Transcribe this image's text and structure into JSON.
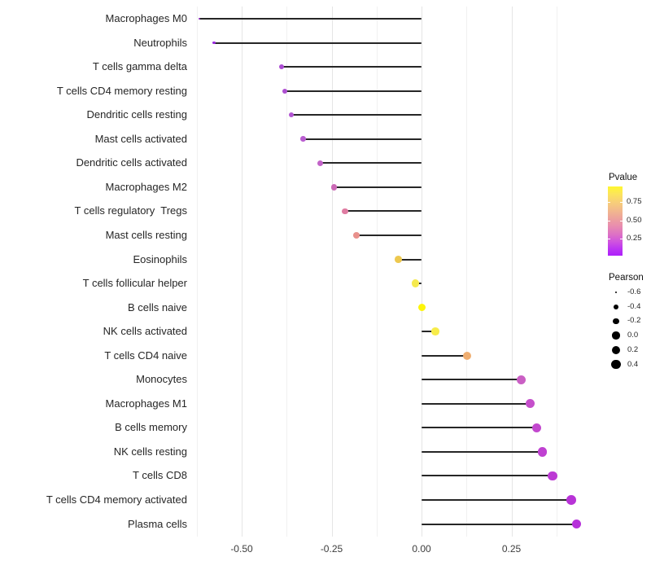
{
  "chart_data": {
    "type": "scatter",
    "subtype": "lollipop",
    "title": "",
    "xlabel": "",
    "ylabel": "",
    "x_axis": {
      "tick_labels": [
        "-0.50",
        "-0.25",
        "0.00",
        "0.25"
      ],
      "tick_values": [
        -0.5,
        -0.25,
        0,
        0.25
      ],
      "range": [
        -0.67,
        0.48
      ],
      "major_gridlines": [
        -0.5,
        -0.25,
        0,
        0.25
      ],
      "minor_gridlines": [
        -0.625,
        -0.375,
        -0.125,
        0.125,
        0.375
      ],
      "grid": "vertical-only"
    },
    "legend_position": "right",
    "rows": [
      {
        "label": "Macrophages M0",
        "pearson": -0.618,
        "color": "#8A22C0"
      },
      {
        "label": "Neutrophils",
        "pearson": -0.577,
        "color": "#9829DC"
      },
      {
        "label": "T cells gamma delta",
        "pearson": -0.39,
        "color": "#AB4BD2"
      },
      {
        "label": "T cells CD4 memory resting",
        "pearson": -0.379,
        "color": "#AD4ED1"
      },
      {
        "label": "Dendritic cells resting",
        "pearson": -0.362,
        "color": "#B254D2"
      },
      {
        "label": "Mast cells activated",
        "pearson": -0.329,
        "color": "#B95DD0"
      },
      {
        "label": "Dendritic cells activated",
        "pearson": -0.282,
        "color": "#C263C8"
      },
      {
        "label": "Macrophages M2",
        "pearson": -0.243,
        "color": "#CB69B6"
      },
      {
        "label": "T cells regulatory  Tregs",
        "pearson": -0.213,
        "color": "#DF7CA2"
      },
      {
        "label": "Mast cells resting",
        "pearson": -0.181,
        "color": "#E8908C"
      },
      {
        "label": "Eosinophils",
        "pearson": -0.064,
        "color": "#EDC84F"
      },
      {
        "label": "T cells follicular helper",
        "pearson": -0.016,
        "color": "#F5E94E"
      },
      {
        "label": "B cells naive",
        "pearson": 0.001,
        "color": "#FDF50A"
      },
      {
        "label": "NK cells activated",
        "pearson": 0.038,
        "color": "#F7EC4A"
      },
      {
        "label": "T cells CD4 naive",
        "pearson": 0.126,
        "color": "#EFAE71"
      },
      {
        "label": "Monocytes",
        "pearson": 0.277,
        "color": "#CA5FC4"
      },
      {
        "label": "Macrophages M1",
        "pearson": 0.302,
        "color": "#C54FCB"
      },
      {
        "label": "B cells memory",
        "pearson": 0.321,
        "color": "#C248CE"
      },
      {
        "label": "NK cells resting",
        "pearson": 0.336,
        "color": "#BF41D1"
      },
      {
        "label": "T cells CD8",
        "pearson": 0.364,
        "color": "#BC3AD4"
      },
      {
        "label": "T cells CD4 memory activated",
        "pearson": 0.416,
        "color": "#B833D7"
      },
      {
        "label": "Plasma cells",
        "pearson": 0.431,
        "color": "#B630DA"
      }
    ]
  },
  "legends": {
    "pvalue": {
      "title": "Pvalue",
      "tick_labels": [
        "0.75",
        "0.50",
        "0.25"
      ],
      "tick_values": [
        0.75,
        0.5,
        0.25
      ],
      "gradient_stops": [
        {
          "color": "#FFF72F",
          "at": 0
        },
        {
          "color": "#FCE45C",
          "at": 11
        },
        {
          "color": "#F7CE79",
          "at": 23
        },
        {
          "color": "#F2B88D",
          "at": 35
        },
        {
          "color": "#EDA29C",
          "at": 46
        },
        {
          "color": "#E98FAD",
          "at": 56
        },
        {
          "color": "#DD72C4",
          "at": 69
        },
        {
          "color": "#CF53DF",
          "at": 80
        },
        {
          "color": "#BC35F2",
          "at": 90
        },
        {
          "color": "#AD1FFA",
          "at": 100
        }
      ]
    },
    "pearson": {
      "title": "Pearson",
      "dot_color": "#000000",
      "items": [
        {
          "label": "-0.6",
          "value": -0.6
        },
        {
          "label": "-0.4",
          "value": -0.4
        },
        {
          "label": "-0.2",
          "value": -0.2
        },
        {
          "label": "0.0",
          "value": 0.0
        },
        {
          "label": "0.2",
          "value": 0.2
        },
        {
          "label": "0.4",
          "value": 0.4
        }
      ]
    }
  },
  "colors": {
    "background": "#ffffff",
    "stem": "#262626",
    "grid_major": "#e5e5e5",
    "grid_minor": "#f1f1f1",
    "y_label_text": "#262626",
    "x_label_text": "#3d3d3d"
  }
}
